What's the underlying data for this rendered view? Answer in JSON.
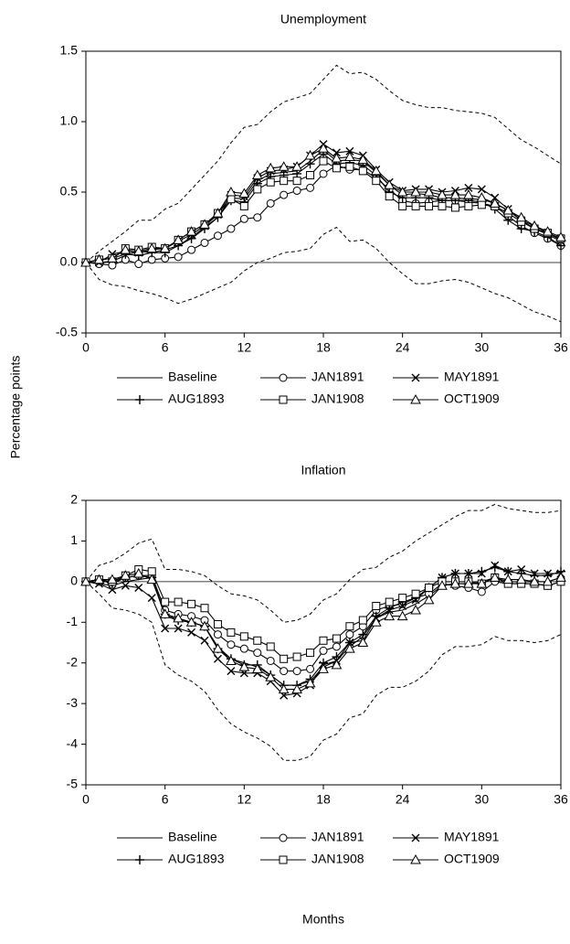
{
  "ylabel": "Percentage points",
  "xlabel": "Months",
  "chart_data": [
    {
      "type": "line",
      "title": "Unemployment",
      "x": [
        0,
        1,
        2,
        3,
        4,
        5,
        6,
        7,
        8,
        9,
        10,
        11,
        12,
        13,
        14,
        15,
        16,
        17,
        18,
        19,
        20,
        21,
        22,
        23,
        24,
        25,
        26,
        27,
        28,
        29,
        30,
        31,
        32,
        33,
        34,
        35,
        36
      ],
      "xlim": [
        0,
        36
      ],
      "xticks": [
        0,
        6,
        12,
        18,
        24,
        30,
        36
      ],
      "ylim": [
        -0.5,
        1.5
      ],
      "yticks": [
        {
          "value": -0.5,
          "label": "-0.5"
        },
        {
          "value": 0,
          "label": "0.0"
        },
        {
          "value": 0.5,
          "label": "0.5"
        },
        {
          "value": 1,
          "label": "1.0"
        },
        {
          "value": 1.5,
          "label": "1.5"
        }
      ],
      "series": [
        {
          "name": "Baseline",
          "color": "#000000",
          "values": [
            0,
            0,
            0.01,
            0.05,
            0.08,
            0.07,
            0.09,
            0.12,
            0.18,
            0.25,
            0.32,
            0.46,
            0.45,
            0.58,
            0.63,
            0.64,
            0.65,
            0.72,
            0.8,
            0.72,
            0.73,
            0.72,
            0.64,
            0.55,
            0.48,
            0.49,
            0.48,
            0.46,
            0.46,
            0.45,
            0.45,
            0.42,
            0.37,
            0.3,
            0.26,
            0.21,
            0.16
          ]
        },
        {
          "name": "JAN1891",
          "color": "#000000",
          "marker": "circle",
          "values": [
            0,
            -0.01,
            -0.02,
            0.02,
            -0.01,
            0.02,
            0.03,
            0.04,
            0.09,
            0.14,
            0.19,
            0.24,
            0.31,
            0.32,
            0.42,
            0.48,
            0.51,
            0.53,
            0.63,
            0.69,
            0.66,
            0.66,
            0.6,
            0.52,
            0.44,
            0.42,
            0.43,
            0.44,
            0.44,
            0.43,
            0.42,
            0.4,
            0.33,
            0.26,
            0.21,
            0.17,
            0.12
          ]
        },
        {
          "name": "MAY1891",
          "color": "#000000",
          "marker": "x",
          "values": [
            0,
            0,
            0.06,
            0.08,
            0.07,
            0.09,
            0.1,
            0.15,
            0.2,
            0.26,
            0.34,
            0.48,
            0.47,
            0.6,
            0.65,
            0.66,
            0.68,
            0.76,
            0.84,
            0.78,
            0.79,
            0.76,
            0.66,
            0.57,
            0.51,
            0.52,
            0.52,
            0.5,
            0.51,
            0.53,
            0.52,
            0.46,
            0.38,
            0.3,
            0.24,
            0.2,
            0.15
          ]
        },
        {
          "name": "AUG1893",
          "color": "#000000",
          "marker": "plus",
          "values": [
            0,
            0.02,
            0.03,
            0.06,
            0.05,
            0.07,
            0.07,
            0.12,
            0.17,
            0.24,
            0.32,
            0.44,
            0.43,
            0.56,
            0.61,
            0.62,
            0.63,
            0.7,
            0.77,
            0.7,
            0.71,
            0.69,
            0.62,
            0.5,
            0.46,
            0.46,
            0.46,
            0.44,
            0.44,
            0.44,
            0.43,
            0.38,
            0.3,
            0.24,
            0.22,
            0.18,
            0.12
          ]
        },
        {
          "name": "JAN1908",
          "color": "#000000",
          "marker": "square",
          "values": [
            0,
            0.02,
            0.03,
            0.1,
            0.09,
            0.11,
            0.1,
            0.16,
            0.22,
            0.27,
            0.35,
            0.45,
            0.4,
            0.52,
            0.57,
            0.58,
            0.58,
            0.62,
            0.72,
            0.67,
            0.68,
            0.65,
            0.58,
            0.47,
            0.4,
            0.4,
            0.4,
            0.4,
            0.39,
            0.4,
            0.41,
            0.4,
            0.35,
            0.29,
            0.24,
            0.21,
            0.17
          ]
        },
        {
          "name": "OCT1909",
          "color": "#000000",
          "marker": "triangle",
          "values": [
            0,
            0.02,
            0.03,
            0.09,
            0.08,
            0.1,
            0.1,
            0.16,
            0.22,
            0.27,
            0.35,
            0.5,
            0.49,
            0.62,
            0.67,
            0.68,
            0.68,
            0.76,
            0.81,
            0.74,
            0.75,
            0.73,
            0.65,
            0.55,
            0.5,
            0.5,
            0.5,
            0.48,
            0.48,
            0.48,
            0.46,
            0.42,
            0.37,
            0.32,
            0.26,
            0.22,
            0.18
          ]
        }
      ],
      "upper_band": [
        0,
        0.08,
        0.15,
        0.22,
        0.3,
        0.3,
        0.38,
        0.42,
        0.52,
        0.62,
        0.72,
        0.85,
        0.96,
        0.98,
        1.07,
        1.14,
        1.17,
        1.2,
        1.3,
        1.4,
        1.34,
        1.35,
        1.3,
        1.22,
        1.15,
        1.12,
        1.1,
        1.1,
        1.08,
        1.07,
        1.06,
        1.03,
        0.95,
        0.87,
        0.82,
        0.76,
        0.7
      ],
      "lower_band": [
        0,
        -0.12,
        -0.16,
        -0.17,
        -0.2,
        -0.22,
        -0.25,
        -0.29,
        -0.26,
        -0.22,
        -0.18,
        -0.14,
        -0.06,
        0,
        0.03,
        0.07,
        0.08,
        0.1,
        0.2,
        0.25,
        0.15,
        0.16,
        0.1,
        0,
        -0.08,
        -0.15,
        -0.15,
        -0.13,
        -0.12,
        -0.14,
        -0.18,
        -0.22,
        -0.25,
        -0.3,
        -0.35,
        -0.38,
        -0.42
      ]
    },
    {
      "type": "line",
      "title": "Inflation",
      "x": [
        0,
        1,
        2,
        3,
        4,
        5,
        6,
        7,
        8,
        9,
        10,
        11,
        12,
        13,
        14,
        15,
        16,
        17,
        18,
        19,
        20,
        21,
        22,
        23,
        24,
        25,
        26,
        27,
        28,
        29,
        30,
        31,
        32,
        33,
        34,
        35,
        36
      ],
      "xlim": [
        0,
        36
      ],
      "xticks": [
        0,
        6,
        12,
        18,
        24,
        30,
        36
      ],
      "ylim": [
        -5,
        2
      ],
      "yticks": [
        -5,
        -4,
        -3,
        -2,
        -1,
        0,
        1,
        2
      ],
      "series": [
        {
          "name": "Baseline",
          "color": "#000000",
          "values": [
            0,
            -0.05,
            -0.1,
            0,
            0.05,
            0.1,
            -0.85,
            -0.95,
            -1,
            -1.1,
            -1.6,
            -1.9,
            -2,
            -2.1,
            -2.3,
            -2.55,
            -2.55,
            -2.45,
            -2.1,
            -1.95,
            -1.6,
            -1.35,
            -0.9,
            -0.75,
            -0.7,
            -0.55,
            -0.35,
            -0.1,
            -0.05,
            -0.05,
            0,
            0.1,
            0,
            0,
            0,
            0,
            0.1
          ]
        },
        {
          "name": "JAN1891",
          "color": "#000000",
          "marker": "circle",
          "values": [
            0,
            0,
            0,
            0.1,
            0.15,
            0.15,
            -0.7,
            -0.8,
            -0.85,
            -0.95,
            -1.3,
            -1.55,
            -1.65,
            -1.75,
            -1.95,
            -2.2,
            -2.2,
            -2.15,
            -1.7,
            -1.6,
            -1.3,
            -1.1,
            -0.7,
            -0.6,
            -0.55,
            -0.4,
            -0.3,
            -0.05,
            -0.1,
            -0.15,
            -0.25,
            0,
            -0.05,
            -0.05,
            -0.05,
            -0.1,
            0
          ]
        },
        {
          "name": "MAY1891",
          "color": "#000000",
          "marker": "x",
          "values": [
            0,
            -0.05,
            -0.2,
            -0.1,
            -0.15,
            -0.4,
            -1.15,
            -1.15,
            -1.25,
            -1.45,
            -1.9,
            -2.2,
            -2.25,
            -2.25,
            -2.45,
            -2.8,
            -2.75,
            -2.55,
            -2.05,
            -1.95,
            -1.5,
            -1.45,
            -0.9,
            -0.7,
            -0.6,
            -0.45,
            -0.15,
            0.1,
            0.2,
            0.2,
            0.2,
            0.4,
            0.25,
            0.3,
            0.2,
            0.2,
            0.2
          ]
        },
        {
          "name": "AUG1893",
          "color": "#000000",
          "marker": "plus",
          "values": [
            0,
            0.05,
            -0.05,
            0.1,
            0.15,
            0.1,
            -0.8,
            -0.95,
            -1,
            -1.1,
            -1.65,
            -1.9,
            -2.05,
            -2.05,
            -2.3,
            -2.55,
            -2.55,
            -2.4,
            -2,
            -1.85,
            -1.5,
            -1.3,
            -0.85,
            -0.65,
            -0.5,
            -0.4,
            -0.15,
            0.1,
            0.2,
            0.2,
            0.25,
            0.35,
            0.25,
            0.2,
            0.15,
            0.15,
            0.25
          ]
        },
        {
          "name": "JAN1908",
          "color": "#000000",
          "marker": "square",
          "values": [
            0,
            0.05,
            0,
            0.15,
            0.3,
            0.25,
            -0.5,
            -0.5,
            -0.55,
            -0.65,
            -1.05,
            -1.25,
            -1.35,
            -1.45,
            -1.6,
            -1.9,
            -1.85,
            -1.75,
            -1.45,
            -1.4,
            -1.1,
            -0.95,
            -0.6,
            -0.5,
            -0.4,
            -0.3,
            -0.15,
            0,
            0,
            0,
            -0.05,
            0.1,
            -0.05,
            -0.05,
            -0.05,
            -0.1,
            0
          ]
        },
        {
          "name": "OCT1909",
          "color": "#000000",
          "marker": "triangle",
          "values": [
            0,
            0.05,
            0.05,
            0.15,
            0.2,
            0.05,
            -0.8,
            -0.9,
            -1,
            -1.1,
            -1.65,
            -1.95,
            -2.1,
            -2.15,
            -2.35,
            -2.65,
            -2.65,
            -2.5,
            -2.15,
            -2.05,
            -1.65,
            -1.5,
            -1,
            -0.85,
            -0.85,
            -0.7,
            -0.45,
            -0.1,
            -0.05,
            -0.05,
            -0.05,
            0.1,
            0.05,
            0.05,
            0,
            0,
            0.1
          ]
        }
      ],
      "upper_band": [
        0,
        0.4,
        0.5,
        0.7,
        0.95,
        1.05,
        0.3,
        0.3,
        0.25,
        0.15,
        -0.1,
        -0.3,
        -0.35,
        -0.45,
        -0.7,
        -1,
        -0.95,
        -0.8,
        -0.45,
        -0.3,
        0.05,
        0.3,
        0.35,
        0.6,
        0.75,
        1,
        1.2,
        1.4,
        1.6,
        1.75,
        1.75,
        1.9,
        1.8,
        1.75,
        1.7,
        1.7,
        1.75
      ],
      "lower_band": [
        0,
        -0.3,
        -0.65,
        -0.7,
        -0.8,
        -1,
        -2.05,
        -2.3,
        -2.45,
        -2.7,
        -3.15,
        -3.5,
        -3.7,
        -3.85,
        -4.05,
        -4.4,
        -4.4,
        -4.3,
        -3.9,
        -3.75,
        -3.35,
        -3.25,
        -2.8,
        -2.6,
        -2.6,
        -2.45,
        -2.2,
        -1.8,
        -1.6,
        -1.6,
        -1.55,
        -1.35,
        -1.45,
        -1.45,
        -1.5,
        -1.45,
        -1.3
      ]
    }
  ]
}
